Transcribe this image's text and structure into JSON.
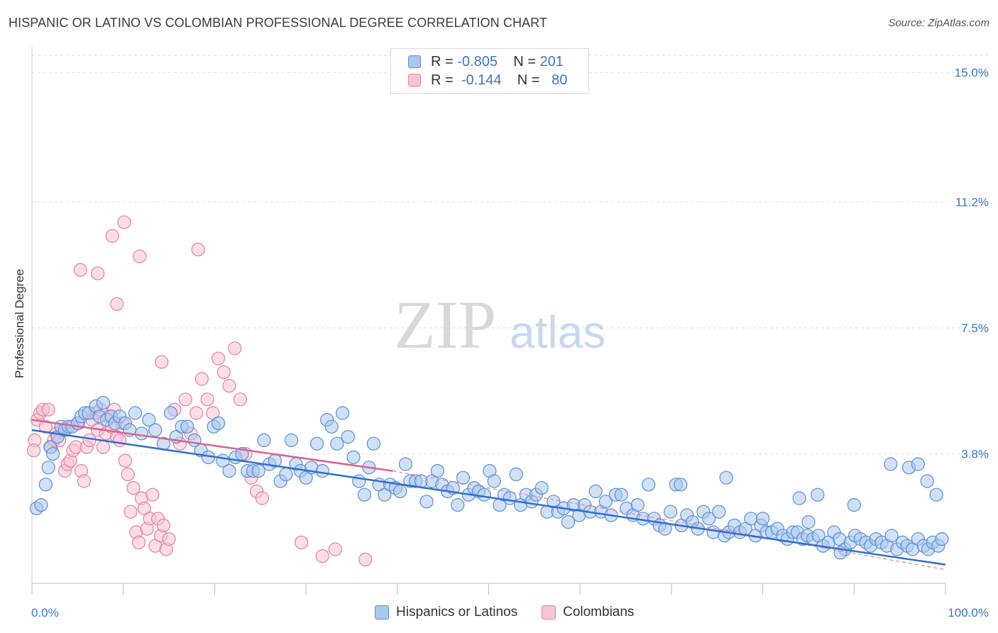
{
  "header": {
    "title": "HISPANIC OR LATINO VS COLOMBIAN PROFESSIONAL DEGREE CORRELATION CHART",
    "source": "Source: ZipAtlas.com"
  },
  "watermark": {
    "zip": "ZIP",
    "atlas": "atlas"
  },
  "legend_top": {
    "rows": [
      {
        "r_label": "R =",
        "r_value": "-0.805",
        "n_label": "N =",
        "n_value": "201",
        "color": "#a9c8f0",
        "border": "#5b8fd6"
      },
      {
        "r_label": "R =",
        "r_value": "-0.144",
        "n_label": "N =",
        "n_value": "80",
        "color": "#f8c3d4",
        "border": "#e67fa3"
      }
    ]
  },
  "legend_bottom": {
    "items": [
      {
        "label": "Hispanics or Latinos",
        "color": "#a9c8f0",
        "border": "#5b8fd6"
      },
      {
        "label": "Colombians",
        "color": "#f8c3d4",
        "border": "#e67fa3"
      }
    ]
  },
  "chart_data": {
    "type": "scatter",
    "title": "HISPANIC OR LATINO VS COLOMBIAN PROFESSIONAL DEGREE CORRELATION CHART",
    "xlabel": "",
    "ylabel": "Professional Degree",
    "xlim": [
      0,
      100
    ],
    "ylim": [
      0,
      15
    ],
    "x_tick_labels": [
      "0.0%",
      "100.0%"
    ],
    "y_ticks": [
      3.8,
      7.5,
      11.2,
      15.0
    ],
    "y_tick_labels": [
      "3.8%",
      "7.5%",
      "11.2%",
      "15.0%"
    ],
    "grid": true,
    "legend": "top-center",
    "series": [
      {
        "name": "Hispanics or Latinos",
        "color": "#5b8fd6",
        "fill": "#a9c8f0",
        "r": -0.805,
        "n": 201,
        "trend": {
          "x": [
            0,
            100
          ],
          "y": [
            4.5,
            0.55
          ],
          "style": "solid"
        },
        "points": [
          [
            0.5,
            2.2
          ],
          [
            1,
            2.3
          ],
          [
            1.5,
            2.9
          ],
          [
            1.8,
            3.4
          ],
          [
            2,
            4.0
          ],
          [
            2.3,
            3.8
          ],
          [
            2.8,
            4.3
          ],
          [
            3.2,
            4.6
          ],
          [
            3.6,
            4.5
          ],
          [
            4,
            4.6
          ],
          [
            4.4,
            4.6
          ],
          [
            5,
            4.7
          ],
          [
            5.4,
            4.9
          ],
          [
            5.8,
            5.0
          ],
          [
            6.2,
            5.0
          ],
          [
            7,
            5.2
          ],
          [
            7.4,
            4.9
          ],
          [
            7.8,
            5.3
          ],
          [
            8.2,
            4.8
          ],
          [
            8.7,
            4.9
          ],
          [
            9.1,
            4.7
          ],
          [
            9.6,
            4.9
          ],
          [
            10.2,
            4.7
          ],
          [
            10.7,
            4.5
          ],
          [
            11.3,
            5.0
          ],
          [
            12,
            4.4
          ],
          [
            12.8,
            4.8
          ],
          [
            13.5,
            4.5
          ],
          [
            14.4,
            4.1
          ],
          [
            15.2,
            5.0
          ],
          [
            15.8,
            4.3
          ],
          [
            16.4,
            4.6
          ],
          [
            17,
            4.6
          ],
          [
            17.8,
            4.2
          ],
          [
            18.5,
            3.9
          ],
          [
            19.3,
            3.7
          ],
          [
            19.9,
            4.6
          ],
          [
            20.4,
            4.7
          ],
          [
            20.9,
            3.6
          ],
          [
            21.6,
            3.3
          ],
          [
            22.3,
            3.7
          ],
          [
            23,
            3.8
          ],
          [
            23.6,
            3.3
          ],
          [
            24.2,
            3.3
          ],
          [
            24.8,
            3.3
          ],
          [
            25.4,
            4.2
          ],
          [
            26,
            3.5
          ],
          [
            26.6,
            3.6
          ],
          [
            27.2,
            3.0
          ],
          [
            27.8,
            3.2
          ],
          [
            28.4,
            4.2
          ],
          [
            28.9,
            3.5
          ],
          [
            29.4,
            3.3
          ],
          [
            30,
            3.1
          ],
          [
            30.6,
            3.4
          ],
          [
            31.2,
            4.1
          ],
          [
            31.8,
            3.3
          ],
          [
            32.3,
            4.8
          ],
          [
            32.8,
            4.6
          ],
          [
            33.4,
            4.1
          ],
          [
            34,
            5.0
          ],
          [
            34.6,
            4.3
          ],
          [
            35.2,
            3.7
          ],
          [
            35.8,
            3.0
          ],
          [
            36.4,
            2.6
          ],
          [
            36.9,
            3.4
          ],
          [
            37.4,
            4.1
          ],
          [
            38,
            2.9
          ],
          [
            38.6,
            2.6
          ],
          [
            39.2,
            2.9
          ],
          [
            39.8,
            2.8
          ],
          [
            40.3,
            2.7
          ],
          [
            40.9,
            3.5
          ],
          [
            41.4,
            3.0
          ],
          [
            42,
            3.0
          ],
          [
            42.6,
            3.0
          ],
          [
            43.2,
            2.4
          ],
          [
            43.8,
            3.0
          ],
          [
            44.4,
            3.3
          ],
          [
            44.9,
            2.9
          ],
          [
            45.5,
            2.7
          ],
          [
            46.1,
            2.8
          ],
          [
            46.6,
            2.3
          ],
          [
            47.2,
            3.1
          ],
          [
            47.8,
            2.6
          ],
          [
            48.4,
            2.8
          ],
          [
            48.9,
            2.7
          ],
          [
            49.5,
            2.6
          ],
          [
            50.1,
            3.3
          ],
          [
            50.6,
            3.0
          ],
          [
            51.2,
            2.3
          ],
          [
            51.7,
            2.6
          ],
          [
            52.3,
            2.5
          ],
          [
            53,
            3.2
          ],
          [
            53.5,
            2.3
          ],
          [
            54.1,
            2.6
          ],
          [
            54.7,
            2.4
          ],
          [
            55.2,
            2.6
          ],
          [
            55.8,
            2.8
          ],
          [
            56.4,
            2.1
          ],
          [
            57.1,
            2.4
          ],
          [
            57.6,
            2.1
          ],
          [
            58.2,
            2.2
          ],
          [
            58.7,
            1.8
          ],
          [
            59.3,
            2.3
          ],
          [
            59.9,
            2.0
          ],
          [
            60.5,
            2.3
          ],
          [
            61.1,
            2.1
          ],
          [
            61.7,
            2.7
          ],
          [
            62.3,
            2.1
          ],
          [
            62.8,
            2.4
          ],
          [
            63.4,
            2.0
          ],
          [
            63.9,
            2.6
          ],
          [
            64.5,
            2.6
          ],
          [
            65.1,
            2.2
          ],
          [
            65.8,
            2.0
          ],
          [
            66.3,
            2.3
          ],
          [
            66.9,
            1.9
          ],
          [
            67.5,
            2.9
          ],
          [
            68.1,
            1.9
          ],
          [
            68.7,
            1.7
          ],
          [
            69.3,
            1.6
          ],
          [
            69.9,
            2.1
          ],
          [
            70.5,
            2.9
          ],
          [
            71.1,
            1.7
          ],
          [
            71.7,
            2.0
          ],
          [
            72.3,
            1.8
          ],
          [
            72.9,
            1.6
          ],
          [
            73.5,
            2.1
          ],
          [
            74.1,
            1.9
          ],
          [
            74.6,
            1.5
          ],
          [
            75.2,
            2.1
          ],
          [
            75.8,
            1.4
          ],
          [
            76.3,
            1.5
          ],
          [
            76.9,
            1.7
          ],
          [
            77.5,
            1.5
          ],
          [
            78.1,
            1.6
          ],
          [
            78.7,
            1.9
          ],
          [
            79.2,
            1.4
          ],
          [
            79.8,
            1.7
          ],
          [
            80.4,
            1.5
          ],
          [
            81,
            1.5
          ],
          [
            81.6,
            1.6
          ],
          [
            82.2,
            1.4
          ],
          [
            82.7,
            1.3
          ],
          [
            83.3,
            1.5
          ],
          [
            83.8,
            1.5
          ],
          [
            84.4,
            1.3
          ],
          [
            84.9,
            1.4
          ],
          [
            85.5,
            1.3
          ],
          [
            86.1,
            1.4
          ],
          [
            86.6,
            1.1
          ],
          [
            87.2,
            1.2
          ],
          [
            87.8,
            1.5
          ],
          [
            88.4,
            1.3
          ],
          [
            89,
            1.0
          ],
          [
            89.6,
            1.2
          ],
          [
            90.1,
            1.4
          ],
          [
            90.7,
            1.3
          ],
          [
            91.3,
            1.2
          ],
          [
            91.8,
            1.1
          ],
          [
            92.4,
            1.3
          ],
          [
            93,
            1.2
          ],
          [
            93.6,
            1.1
          ],
          [
            94.1,
            1.4
          ],
          [
            94.7,
            1.0
          ],
          [
            95.3,
            1.2
          ],
          [
            95.8,
            1.1
          ],
          [
            96.4,
            1.0
          ],
          [
            97,
            1.3
          ],
          [
            97.6,
            1.1
          ],
          [
            98.1,
            1.0
          ],
          [
            98.6,
            1.2
          ],
          [
            99.2,
            1.1
          ],
          [
            99.6,
            1.3
          ],
          [
            90,
            2.3
          ],
          [
            84,
            2.5
          ],
          [
            71,
            2.9
          ],
          [
            76,
            3.1
          ],
          [
            80,
            1.9
          ],
          [
            86,
            2.6
          ],
          [
            94,
            3.5
          ],
          [
            96,
            3.4
          ],
          [
            97,
            3.5
          ],
          [
            98,
            3.0
          ],
          [
            99,
            2.6
          ],
          [
            88.5,
            0.9
          ],
          [
            85,
            1.8
          ]
        ]
      },
      {
        "name": "Colombians",
        "color": "#e67fa3",
        "fill": "#f8c3d4",
        "r": -0.144,
        "n": 80,
        "trend": {
          "x": [
            0,
            39.5
          ],
          "y": [
            4.8,
            3.3
          ],
          "style": "solid",
          "dashed_extension": {
            "x": [
              39.5,
              100
            ],
            "y": [
              3.3,
              0.4
            ]
          }
        },
        "points": [
          [
            0.3,
            4.2
          ],
          [
            0.6,
            4.8
          ],
          [
            0.9,
            5.0
          ],
          [
            1.2,
            5.1
          ],
          [
            1.5,
            4.6
          ],
          [
            1.8,
            5.1
          ],
          [
            2.1,
            4.0
          ],
          [
            2.4,
            4.2
          ],
          [
            2.7,
            4.4
          ],
          [
            3.0,
            4.2
          ],
          [
            3.3,
            4.5
          ],
          [
            3.6,
            3.3
          ],
          [
            3.9,
            3.5
          ],
          [
            4.2,
            3.6
          ],
          [
            4.5,
            3.9
          ],
          [
            4.8,
            4.0
          ],
          [
            5.1,
            4.7
          ],
          [
            5.4,
            3.3
          ],
          [
            5.7,
            3.0
          ],
          [
            6.0,
            4.0
          ],
          [
            6.3,
            4.2
          ],
          [
            6.6,
            4.8
          ],
          [
            6.9,
            5.0
          ],
          [
            7.2,
            4.5
          ],
          [
            7.5,
            5.1
          ],
          [
            7.8,
            4.0
          ],
          [
            8.1,
            4.4
          ],
          [
            8.4,
            4.9
          ],
          [
            8.7,
            4.6
          ],
          [
            9.0,
            5.1
          ],
          [
            9.3,
            4.3
          ],
          [
            9.6,
            4.2
          ],
          [
            9.9,
            4.7
          ],
          [
            10.2,
            3.6
          ],
          [
            10.5,
            3.2
          ],
          [
            10.8,
            2.1
          ],
          [
            11.1,
            2.8
          ],
          [
            11.4,
            1.5
          ],
          [
            11.7,
            1.2
          ],
          [
            12.0,
            2.5
          ],
          [
            12.3,
            2.2
          ],
          [
            12.6,
            1.6
          ],
          [
            12.9,
            1.9
          ],
          [
            13.2,
            2.6
          ],
          [
            13.5,
            1.1
          ],
          [
            13.8,
            1.9
          ],
          [
            14.1,
            1.4
          ],
          [
            14.4,
            1.7
          ],
          [
            14.7,
            1.0
          ],
          [
            15.0,
            1.3
          ],
          [
            15.6,
            5.1
          ],
          [
            16.2,
            4.1
          ],
          [
            16.8,
            5.4
          ],
          [
            17.4,
            4.4
          ],
          [
            18.0,
            5.0
          ],
          [
            18.6,
            6.0
          ],
          [
            19.2,
            5.4
          ],
          [
            19.8,
            5.0
          ],
          [
            20.4,
            6.6
          ],
          [
            21.0,
            6.2
          ],
          [
            21.6,
            5.8
          ],
          [
            22.2,
            6.9
          ],
          [
            22.8,
            5.4
          ],
          [
            23.4,
            3.8
          ],
          [
            24.0,
            3.1
          ],
          [
            24.6,
            2.7
          ],
          [
            25.2,
            2.5
          ],
          [
            0.2,
            3.9
          ],
          [
            5.3,
            9.2
          ],
          [
            7.2,
            9.1
          ],
          [
            8.8,
            10.2
          ],
          [
            9.3,
            8.2
          ],
          [
            10.1,
            10.6
          ],
          [
            11.8,
            9.6
          ],
          [
            14.2,
            6.5
          ],
          [
            18.2,
            9.8
          ],
          [
            29.5,
            1.2
          ],
          [
            31.8,
            0.8
          ],
          [
            33.2,
            1.0
          ],
          [
            36.5,
            0.7
          ]
        ]
      }
    ]
  }
}
